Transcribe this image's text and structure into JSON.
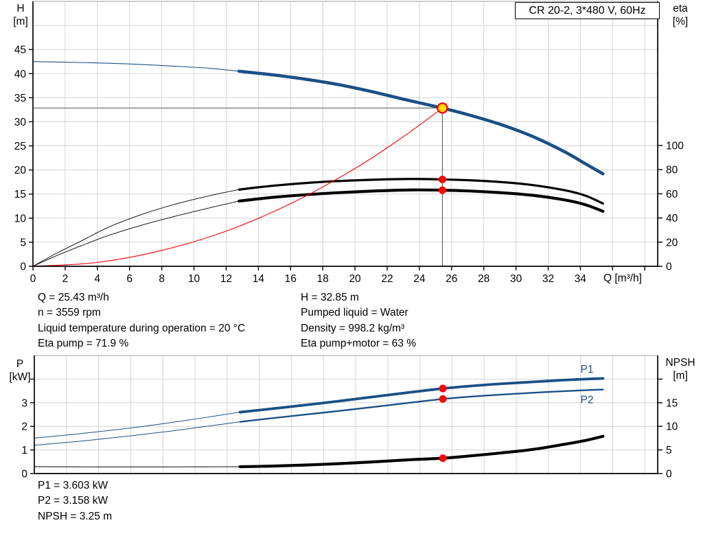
{
  "header": {
    "model": "CR 20-2, 3*480 V, 60Hz"
  },
  "info_top_left": [
    "Q = 25.43 m³/h",
    "n = 3559 rpm",
    "Liquid temperature during operation = 20 °C",
    "Eta pump = 71.9 %"
  ],
  "info_top_right": [
    "H = 32.85 m",
    "Pumped liquid = Water",
    "Density = 998.2 kg/m³",
    "Eta pump+motor = 63 %"
  ],
  "info_bottom": [
    "P1 = 3.603 kW",
    "P2 = 3.158 kW",
    "NPSH = 3.25 m"
  ],
  "colors": {
    "curve_blue": "#1a5086",
    "curve_black": "#000000",
    "curve_red": "#ff0000",
    "duty_fill": "#ffdf00",
    "marker_red": "#ff0000",
    "grid": "#d4d4d4",
    "plot_border": "#b0b0b0",
    "helper": "#666666",
    "axis": "#000000"
  },
  "chart_data": [
    {
      "type": "line",
      "title": "Head / efficiency vs flow",
      "x_axis_label": "Q [m³/h]",
      "y_left_label": [
        "H",
        "[m]"
      ],
      "y_right_label": [
        "eta",
        "[%]"
      ],
      "x_range": [
        0,
        38.8
      ],
      "y_left_range": [
        0,
        55
      ],
      "y_right_range": [
        0,
        219.3
      ],
      "grid": {
        "x_step": 2,
        "y_values": [
          5,
          10,
          15,
          20,
          25,
          30,
          35,
          40,
          45,
          50
        ]
      },
      "x_ticks": {
        "step": 2,
        "labeled_max": 34,
        "marks_max": 38
      },
      "y_left_ticks": {
        "values": [
          0,
          5,
          10,
          15,
          20,
          25,
          30,
          35,
          40,
          45
        ],
        "extra_marks": []
      },
      "y_right_ticks": {
        "values": [
          0,
          20,
          40,
          60,
          80,
          100
        ],
        "extra_marks": []
      },
      "helper_lines": [
        {
          "type": "h",
          "value": 32.85,
          "q_from": 0,
          "q_to": 25.43
        },
        {
          "type": "v",
          "q": 25.43,
          "value_from": 0,
          "value_to": 32.85
        }
      ],
      "series": [
        {
          "name": "hq-curve-preview",
          "axis": "left",
          "color": "#1a5086",
          "width": 1.1,
          "points": [
            [
              0,
              42.5
            ],
            [
              3,
              42.3
            ],
            [
              6,
              42.0
            ],
            [
              9,
              41.5
            ],
            [
              11,
              41.1
            ],
            [
              12.8,
              40.5
            ]
          ]
        },
        {
          "name": "hq-curve",
          "axis": "left",
          "color": "#1a5086",
          "width": 4.6,
          "points": [
            [
              12.8,
              40.5
            ],
            [
              15,
              39.7
            ],
            [
              17,
              38.8
            ],
            [
              19,
              37.7
            ],
            [
              21,
              36.3
            ],
            [
              23,
              34.7
            ],
            [
              25.43,
              32.85
            ],
            [
              27,
              31.5
            ],
            [
              29,
              29.5
            ],
            [
              31,
              27.0
            ],
            [
              33,
              23.8
            ],
            [
              34.3,
              21.3
            ],
            [
              35.4,
              19.2
            ]
          ]
        },
        {
          "name": "eta-pump-curve-preview",
          "axis": "right",
          "color": "#000000",
          "width": 0.9,
          "points": [
            [
              0,
              0
            ],
            [
              1.5,
              11
            ],
            [
              3,
              21
            ],
            [
              4.8,
              33
            ],
            [
              7,
              44
            ],
            [
              9,
              52
            ],
            [
              11,
              58.5
            ],
            [
              12.8,
              63.5
            ]
          ]
        },
        {
          "name": "eta-pump-curve",
          "axis": "right",
          "color": "#000000",
          "width": 3.2,
          "points": [
            [
              12.8,
              63.5
            ],
            [
              15,
              66.8
            ],
            [
              18,
              69.9
            ],
            [
              21,
              71.6
            ],
            [
              23.5,
              72.3
            ],
            [
              25.43,
              71.9
            ],
            [
              27,
              71.3
            ],
            [
              29,
              69.8
            ],
            [
              31,
              67.3
            ],
            [
              33,
              63.0
            ],
            [
              34.3,
              58.5
            ],
            [
              35.4,
              52.0
            ]
          ]
        },
        {
          "name": "eta-pump-motor-curve-preview",
          "axis": "right",
          "color": "#000000",
          "width": 0.9,
          "points": [
            [
              0,
              0
            ],
            [
              1.5,
              9
            ],
            [
              3,
              17
            ],
            [
              4.8,
              26
            ],
            [
              7,
              35
            ],
            [
              9,
              42
            ],
            [
              11,
              48.5
            ],
            [
              12.8,
              54.0
            ]
          ]
        },
        {
          "name": "eta-pump-motor-curve",
          "axis": "right",
          "color": "#000000",
          "width": 4.2,
          "points": [
            [
              12.8,
              54.0
            ],
            [
              15,
              57.2
            ],
            [
              18,
              60.2
            ],
            [
              21,
              62.2
            ],
            [
              23.5,
              63.2
            ],
            [
              25.43,
              63.0
            ],
            [
              27,
              62.4
            ],
            [
              29,
              61.0
            ],
            [
              31,
              58.8
            ],
            [
              33,
              55.0
            ],
            [
              34.3,
              51.0
            ],
            [
              35.4,
              45.5
            ]
          ]
        },
        {
          "name": "system-curve",
          "axis": "left",
          "color": "#ff0000",
          "width": 1.1,
          "points": [
            [
              0,
              0
            ],
            [
              4,
              0.8
            ],
            [
              8,
              3.3
            ],
            [
              12,
              7.3
            ],
            [
              16,
              13.0
            ],
            [
              20,
              20.3
            ],
            [
              23,
              26.9
            ],
            [
              25.43,
              32.85
            ]
          ]
        }
      ],
      "markers": [
        {
          "name": "duty-point-marker",
          "style": "duty",
          "q": 25.43,
          "value": 32.85,
          "axis": "left"
        },
        {
          "name": "eta-pump-dot",
          "style": "dot",
          "q": 25.43,
          "value": 71.9,
          "axis": "right"
        },
        {
          "name": "eta-pump-motor-dot",
          "style": "dot",
          "q": 25.43,
          "value": 63.0,
          "axis": "right"
        }
      ],
      "duty_point": {
        "Q_m3h": 25.43,
        "H_m": 32.85,
        "eta_pump_pct": 71.9,
        "eta_pump_motor_pct": 63
      }
    },
    {
      "type": "line",
      "title": "Power / NPSH vs flow",
      "x_axis_label": "",
      "y_left_label": [
        "P",
        "[kW]"
      ],
      "y_right_label": [
        "NPSH",
        "[m]"
      ],
      "x_range": [
        0,
        38.8
      ],
      "y_left_range": [
        0,
        5
      ],
      "y_right_range": [
        0,
        25
      ],
      "grid": {
        "x_step": 2,
        "y_values": [
          1,
          2,
          3,
          4
        ]
      },
      "x_ticks": null,
      "y_left_ticks": {
        "values": [
          0,
          1,
          2,
          3
        ],
        "extra_marks": [
          4
        ]
      },
      "y_right_ticks": {
        "values": [
          0,
          5,
          10,
          15
        ],
        "extra_marks": [
          20
        ]
      },
      "helper_lines": [],
      "series": [
        {
          "name": "p1-curve-preview",
          "axis": "left",
          "color": "#1a5086",
          "width": 1.0,
          "points": [
            [
              0,
              1.5
            ],
            [
              3,
              1.7
            ],
            [
              6,
              1.93
            ],
            [
              8.5,
              2.16
            ],
            [
              10.5,
              2.36
            ],
            [
              12.8,
              2.6
            ]
          ]
        },
        {
          "name": "p1-curve",
          "axis": "left",
          "color": "#1a5086",
          "width": 3.8,
          "points": [
            [
              12.8,
              2.6
            ],
            [
              15,
              2.76
            ],
            [
              18,
              2.99
            ],
            [
              21,
              3.24
            ],
            [
              23.5,
              3.45
            ],
            [
              25.43,
              3.603
            ],
            [
              27,
              3.7
            ],
            [
              29,
              3.8
            ],
            [
              31,
              3.88
            ],
            [
              33,
              3.96
            ],
            [
              34.3,
              4.0
            ],
            [
              35.4,
              4.03
            ]
          ]
        },
        {
          "name": "p2-curve-preview",
          "axis": "left",
          "color": "#1a5086",
          "width": 1.0,
          "points": [
            [
              0,
              1.2
            ],
            [
              3,
              1.38
            ],
            [
              6,
              1.6
            ],
            [
              8.5,
              1.8
            ],
            [
              10.5,
              1.98
            ],
            [
              12.8,
              2.19
            ]
          ]
        },
        {
          "name": "p2-curve",
          "axis": "left",
          "color": "#1a5086",
          "width": 2.4,
          "points": [
            [
              12.8,
              2.19
            ],
            [
              15,
              2.36
            ],
            [
              18,
              2.58
            ],
            [
              21,
              2.81
            ],
            [
              23.5,
              3.01
            ],
            [
              25.43,
              3.158
            ],
            [
              27,
              3.25
            ],
            [
              29,
              3.34
            ],
            [
              31,
              3.42
            ],
            [
              33,
              3.49
            ],
            [
              34.3,
              3.53
            ],
            [
              35.4,
              3.56
            ]
          ]
        },
        {
          "name": "npsh-curve-preview",
          "axis": "right",
          "color": "#333333",
          "width": 1.2,
          "points": [
            [
              0,
              1.45
            ],
            [
              4,
              1.4
            ],
            [
              8,
              1.4
            ],
            [
              10.5,
              1.42
            ],
            [
              12.8,
              1.45
            ]
          ]
        },
        {
          "name": "npsh-curve",
          "axis": "right",
          "color": "#000000",
          "width": 4.2,
          "points": [
            [
              12.8,
              1.45
            ],
            [
              15,
              1.6
            ],
            [
              18,
              1.95
            ],
            [
              21,
              2.45
            ],
            [
              23.5,
              2.95
            ],
            [
              25.43,
              3.25
            ],
            [
              27,
              3.7
            ],
            [
              29,
              4.35
            ],
            [
              31,
              5.1
            ],
            [
              33,
              6.2
            ],
            [
              34.3,
              7.0
            ],
            [
              35.4,
              7.9
            ]
          ]
        }
      ],
      "markers": [
        {
          "name": "p1-dot",
          "style": "dot",
          "q": 25.43,
          "value": 3.603,
          "axis": "left"
        },
        {
          "name": "p2-dot",
          "style": "dot",
          "q": 25.43,
          "value": 3.158,
          "axis": "left"
        },
        {
          "name": "npsh-dot",
          "style": "dot",
          "q": 25.43,
          "value": 3.25,
          "axis": "right"
        }
      ],
      "curve_labels": [
        {
          "name": "p1-curve-label",
          "text": "P1",
          "q": 34.4,
          "value": 4.42,
          "color": "#1a5086"
        },
        {
          "name": "p2-curve-label",
          "text": "P2",
          "q": 34.4,
          "value": 3.12,
          "color": "#1a5086"
        }
      ],
      "duty_point": {
        "Q_m3h": 25.43,
        "P1_kW": 3.603,
        "P2_kW": 3.158,
        "NPSH_m": 3.25
      }
    }
  ]
}
